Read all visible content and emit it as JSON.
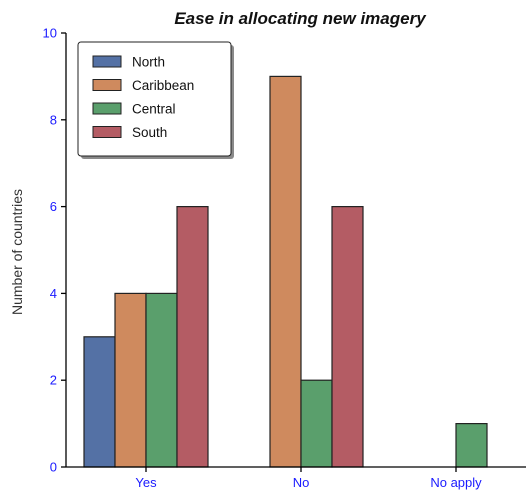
{
  "chart_data": {
    "type": "bar",
    "title": "Ease in allocating new imagery",
    "xlabel": "",
    "ylabel": "Number of countries",
    "categories": [
      "Yes",
      "No",
      "No apply"
    ],
    "series": [
      {
        "name": "North",
        "values": [
          3,
          0,
          0
        ],
        "color": "#5471a5"
      },
      {
        "name": "Caribbean",
        "values": [
          4,
          9,
          0
        ],
        "color": "#cf8a5e"
      },
      {
        "name": "Central",
        "values": [
          4,
          2,
          1
        ],
        "color": "#5a9f6c"
      },
      {
        "name": "South",
        "values": [
          6,
          6,
          0
        ],
        "color": "#b45c64"
      }
    ],
    "ylim": [
      0,
      10
    ],
    "yticks": [
      0,
      2,
      4,
      6,
      8,
      10
    ],
    "grid": false,
    "legend_position": "top-left",
    "tick_label_color": "#1a1aff",
    "bar_edge_color": "#222222"
  }
}
